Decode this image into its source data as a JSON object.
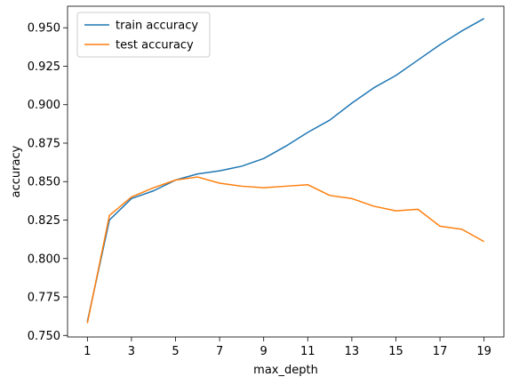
{
  "chart_data": {
    "type": "line",
    "xlabel": "max_depth",
    "ylabel": "accuracy",
    "x": [
      1,
      2,
      3,
      4,
      5,
      6,
      7,
      8,
      9,
      10,
      11,
      12,
      13,
      14,
      15,
      16,
      17,
      18,
      19
    ],
    "series": [
      {
        "name": "train accuracy",
        "color": "#1f77b4",
        "values": [
          0.759,
          0.825,
          0.839,
          0.844,
          0.851,
          0.855,
          0.857,
          0.86,
          0.865,
          0.873,
          0.882,
          0.89,
          0.901,
          0.911,
          0.919,
          0.929,
          0.939,
          0.948,
          0.956
        ]
      },
      {
        "name": "test accuracy",
        "color": "#ff7f0e",
        "values": [
          0.758,
          0.828,
          0.84,
          0.846,
          0.851,
          0.853,
          0.849,
          0.847,
          0.846,
          0.847,
          0.848,
          0.841,
          0.839,
          0.834,
          0.831,
          0.832,
          0.821,
          0.819,
          0.811
        ]
      }
    ],
    "xticks": [
      1,
      3,
      5,
      7,
      9,
      11,
      13,
      15,
      17,
      19
    ],
    "yticks": [
      "0.750",
      "0.775",
      "0.800",
      "0.825",
      "0.850",
      "0.875",
      "0.900",
      "0.925",
      "0.950"
    ],
    "xlim": [
      0.1,
      19.9
    ],
    "ylim": [
      0.749,
      0.964
    ],
    "grid": false,
    "legend_position": "top-left"
  }
}
